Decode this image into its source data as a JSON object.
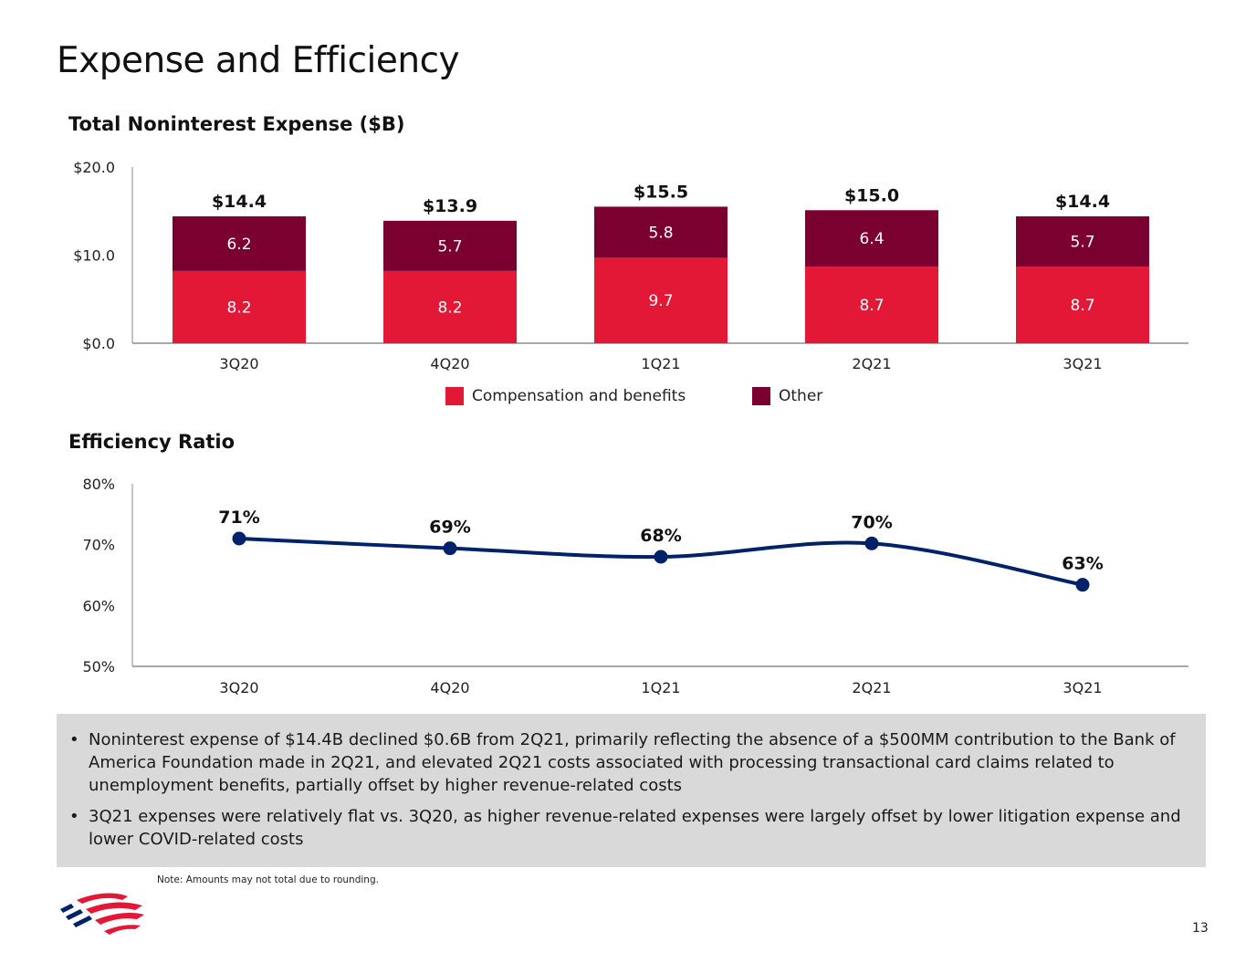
{
  "page": {
    "title": "Expense and Efficiency",
    "page_number": "13",
    "note": "Note: Amounts may not total due to rounding."
  },
  "colors": {
    "compensation": "#e31837",
    "other": "#7a0030",
    "line": "#012169",
    "axis": "#8c8c8c"
  },
  "chart_data": [
    {
      "type": "bar",
      "stacked": true,
      "title": "Total Noninterest Expense ($B)",
      "categories": [
        "3Q20",
        "4Q20",
        "1Q21",
        "2Q21",
        "3Q21"
      ],
      "series": [
        {
          "name": "Compensation and benefits",
          "values": [
            8.2,
            8.2,
            9.7,
            8.7,
            8.7
          ],
          "labels": [
            "8.2",
            "8.2",
            "9.7",
            "8.7",
            "8.7"
          ]
        },
        {
          "name": "Other",
          "values": [
            6.2,
            5.7,
            5.8,
            6.4,
            5.7
          ],
          "labels": [
            "6.2",
            "5.7",
            "5.8",
            "6.4",
            "5.7"
          ]
        }
      ],
      "totals": [
        14.4,
        13.9,
        15.5,
        15.0,
        14.4
      ],
      "total_labels": [
        "$14.4",
        "$13.9",
        "$15.5",
        "$15.0",
        "$14.4"
      ],
      "ylim": [
        0,
        20
      ],
      "yticks": [
        0,
        10,
        20
      ],
      "ytick_labels": [
        "$0.0",
        "$10.0",
        "$20.0"
      ],
      "legend": [
        "Compensation and benefits",
        "Other"
      ],
      "legend_position": "bottom-center",
      "grid": false
    },
    {
      "type": "line",
      "title": "Efficiency Ratio",
      "categories": [
        "3Q20",
        "4Q20",
        "1Q21",
        "2Q21",
        "3Q21"
      ],
      "values": [
        71,
        69.4,
        68,
        70.2,
        63.4
      ],
      "value_labels": [
        "71%",
        "69%",
        "68%",
        "70%",
        "63%"
      ],
      "ylim": [
        50,
        80
      ],
      "yticks": [
        50,
        60,
        70,
        80
      ],
      "ytick_labels": [
        "50%",
        "60%",
        "70%",
        "80%"
      ],
      "grid": false
    }
  ],
  "commentary": [
    "Noninterest expense of $14.4B declined $0.6B from 2Q21, primarily reflecting the absence of a $500MM contribution to the Bank of America Foundation made in 2Q21, and elevated 2Q21 costs associated with processing transactional card claims related to unemployment benefits, partially offset by higher revenue-related costs",
    "3Q21 expenses were relatively flat vs. 3Q20, as higher revenue-related expenses were largely offset by lower litigation expense and lower COVID-related costs"
  ],
  "bullet_symbol": "•"
}
